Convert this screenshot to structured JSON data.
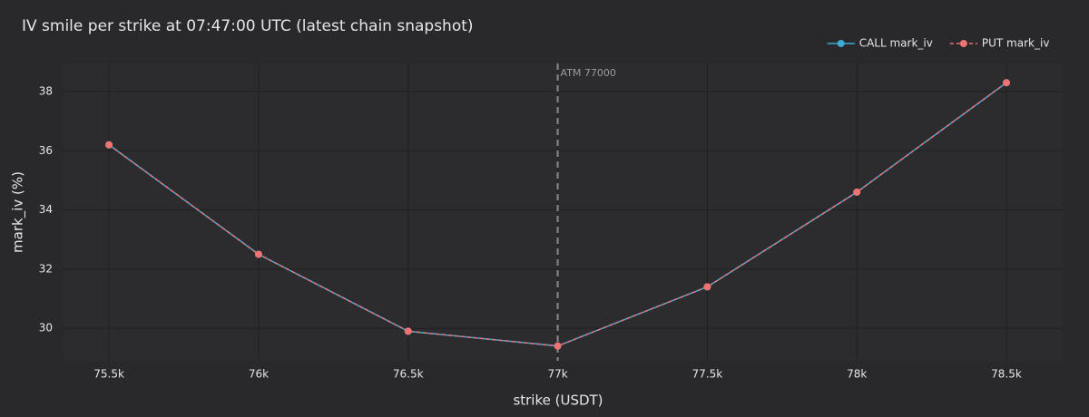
{
  "chart_data": {
    "type": "line",
    "title": "IV smile per strike at 07:47:00 UTC (latest chain snapshot)",
    "x_label": "strike (USDT)",
    "y_label": "mark_iv (%)",
    "x": [
      75500,
      76000,
      76500,
      77000,
      77500,
      78000,
      78500
    ],
    "series": [
      {
        "name": "CALL mark_iv",
        "color": "#3fa9d8",
        "dash": false,
        "values": [
          36.2,
          32.5,
          29.9,
          29.4,
          31.4,
          34.6,
          38.3
        ]
      },
      {
        "name": "PUT mark_iv",
        "color": "#ef7373",
        "dash": true,
        "values": [
          36.2,
          32.5,
          29.9,
          29.4,
          31.4,
          34.6,
          38.3
        ]
      }
    ],
    "xlim": [
      75348,
      78685
    ],
    "ylim": [
      28.9,
      38.95
    ],
    "xticks": [
      {
        "value": 75500,
        "label": "75.5k"
      },
      {
        "value": 76000,
        "label": "76k"
      },
      {
        "value": 76500,
        "label": "76.5k"
      },
      {
        "value": 77000,
        "label": "77k"
      },
      {
        "value": 77500,
        "label": "77.5k"
      },
      {
        "value": 78000,
        "label": "78k"
      },
      {
        "value": 78500,
        "label": "78.5k"
      }
    ],
    "yticks": [
      30,
      32,
      34,
      36,
      38
    ],
    "grid": true,
    "legend": "top-right",
    "atm": {
      "x": 77000,
      "label": "ATM 77000"
    }
  }
}
